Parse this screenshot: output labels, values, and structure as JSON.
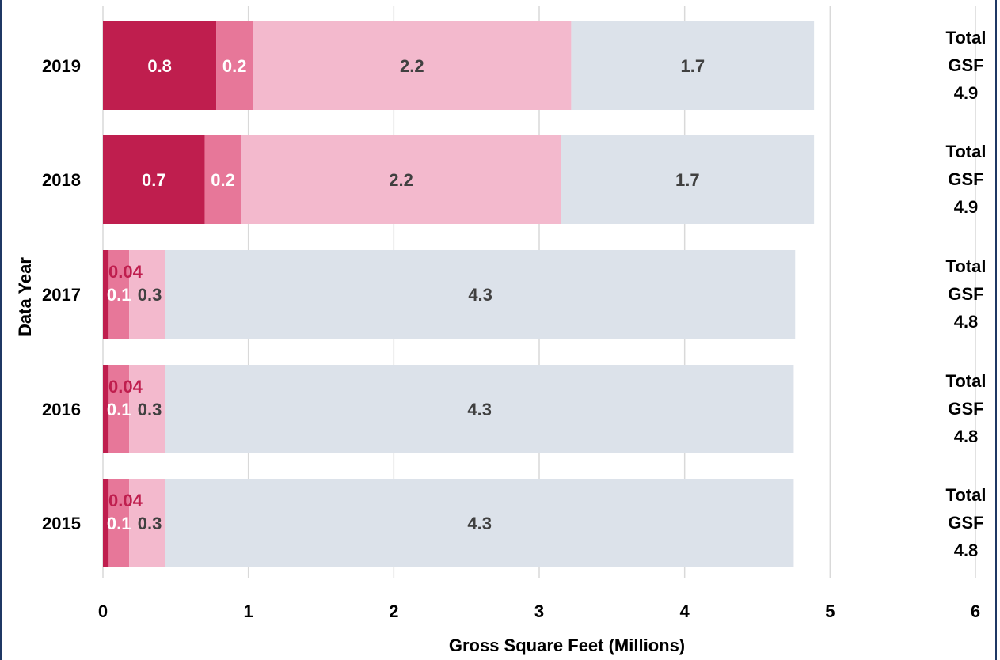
{
  "chart_data": {
    "type": "bar",
    "orientation": "horizontal",
    "stacked": true,
    "title": "",
    "xlabel": "Gross Square Feet  (Millions)",
    "ylabel": "Data Year",
    "xlim": [
      0,
      6
    ],
    "x_ticks": [
      "0",
      "1",
      "2",
      "3",
      "4",
      "5",
      "6"
    ],
    "grid": "vertical",
    "legend": "none",
    "categories": [
      "2019",
      "2018",
      "2017",
      "2016",
      "2015"
    ],
    "series": [
      {
        "color": "#bf1e4e",
        "label_color": "#ffffff",
        "values": [
          0.78,
          0.7,
          0.04,
          0.04,
          0.04
        ],
        "labels": [
          "0.8",
          "0.7",
          "0.04",
          "0.04",
          "0.04"
        ]
      },
      {
        "color": "#e77799",
        "label_color": "#ffffff",
        "values": [
          0.25,
          0.25,
          0.14,
          0.14,
          0.14
        ],
        "labels": [
          "0.2",
          "0.2",
          "0.1",
          "0.1",
          "0.1"
        ]
      },
      {
        "color": "#f3b9cd",
        "label_color": "#404040",
        "values": [
          2.19,
          2.2,
          0.25,
          0.25,
          0.25
        ],
        "labels": [
          "2.2",
          "2.2",
          "0.3",
          "0.3",
          "0.3"
        ]
      },
      {
        "color": "#dce2ea",
        "label_color": "#404040",
        "values": [
          1.67,
          1.74,
          4.33,
          4.32,
          4.32
        ],
        "labels": [
          "1.7",
          "1.7",
          "4.3",
          "4.3",
          "4.3"
        ]
      }
    ],
    "small_first_label_color": "#bf1e4e",
    "totals": [
      {
        "line1": "Total",
        "line2": "GSF",
        "value": "4.9"
      },
      {
        "line1": "Total",
        "line2": "GSF",
        "value": "4.9"
      },
      {
        "line1": "Total",
        "line2": "GSF",
        "value": "4.8"
      },
      {
        "line1": "Total",
        "line2": "GSF",
        "value": "4.8"
      },
      {
        "line1": "Total",
        "line2": "GSF",
        "value": "4.8"
      }
    ],
    "colors": {
      "grid": "#d9d9d9",
      "text": "#000000",
      "frame": "#1f3864"
    }
  }
}
